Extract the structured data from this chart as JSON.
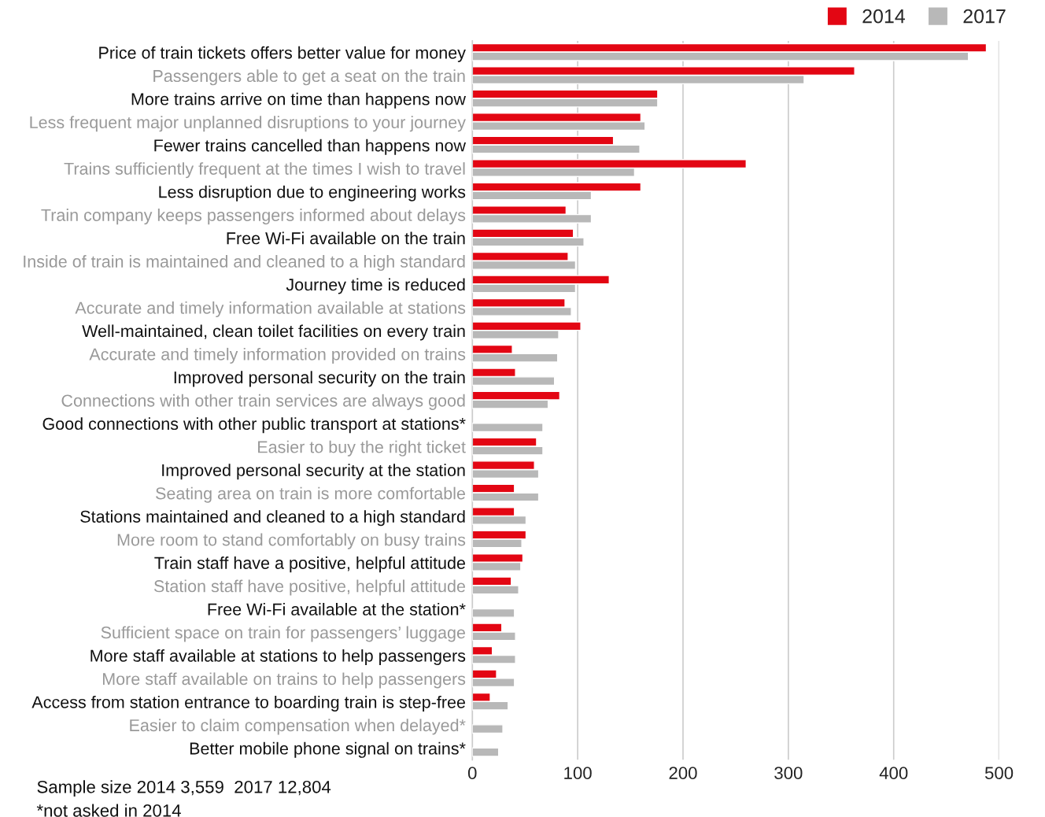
{
  "chart_data": {
    "type": "bar",
    "orientation": "horizontal",
    "categories": [
      "Price of train tickets offers better value for money",
      "Passengers able to get a seat on the train",
      "More trains arrive on time than happens now",
      "Less frequent major unplanned disruptions to your journey",
      "Fewer trains cancelled than happens now",
      "Trains sufficiently frequent at the times I wish to travel",
      "Less disruption due to engineering works",
      "Train company keeps passengers informed about delays",
      "Free Wi-Fi available on the train",
      "Inside of train is maintained and cleaned to a high standard",
      "Journey time is reduced",
      "Accurate and timely information available at stations",
      "Well-maintained, clean toilet facilities on every train",
      "Accurate and timely information provided on trains",
      "Improved personal security on the train",
      "Connections with other train services are always good",
      "Good connections with other public transport at stations*",
      "Easier to buy the right ticket",
      "Improved personal security at the station",
      "Seating area on train is more comfortable",
      "Stations maintained and cleaned to a high standard",
      "More room to stand comfortably on busy trains",
      "Train staff have a positive, helpful attitude",
      "Station staff have positive, helpful attitude",
      "Free Wi-Fi available at the station*",
      "Sufficient space on train for passengers’ luggage",
      "More staff available at stations to help passengers",
      "More staff available on trains to help passengers",
      "Access from station entrance to boarding train is step-free",
      "Easier to claim compensation when delayed*",
      "Better mobile phone signal on trains*"
    ],
    "series": [
      {
        "name": "2014",
        "color": "#e30613",
        "values": [
          488,
          363,
          176,
          160,
          134,
          260,
          160,
          89,
          96,
          91,
          130,
          88,
          103,
          38,
          41,
          83,
          null,
          61,
          59,
          40,
          40,
          51,
          48,
          37,
          null,
          28,
          19,
          23,
          17,
          null,
          null
        ]
      },
      {
        "name": "2017",
        "color": "#b8b8b8",
        "values": [
          471,
          315,
          176,
          164,
          159,
          154,
          113,
          113,
          106,
          98,
          98,
          94,
          82,
          81,
          78,
          72,
          67,
          67,
          63,
          63,
          51,
          47,
          46,
          44,
          40,
          41,
          41,
          40,
          34,
          29,
          25
        ]
      }
    ],
    "xlim": [
      0,
      500
    ],
    "xticks": [
      0,
      100,
      200,
      300,
      400,
      500
    ],
    "grid": "x",
    "legend": "top right",
    "annotations": [
      "Sample size 2014 3,559  2017 12,804",
      "*not asked in 2014"
    ]
  }
}
